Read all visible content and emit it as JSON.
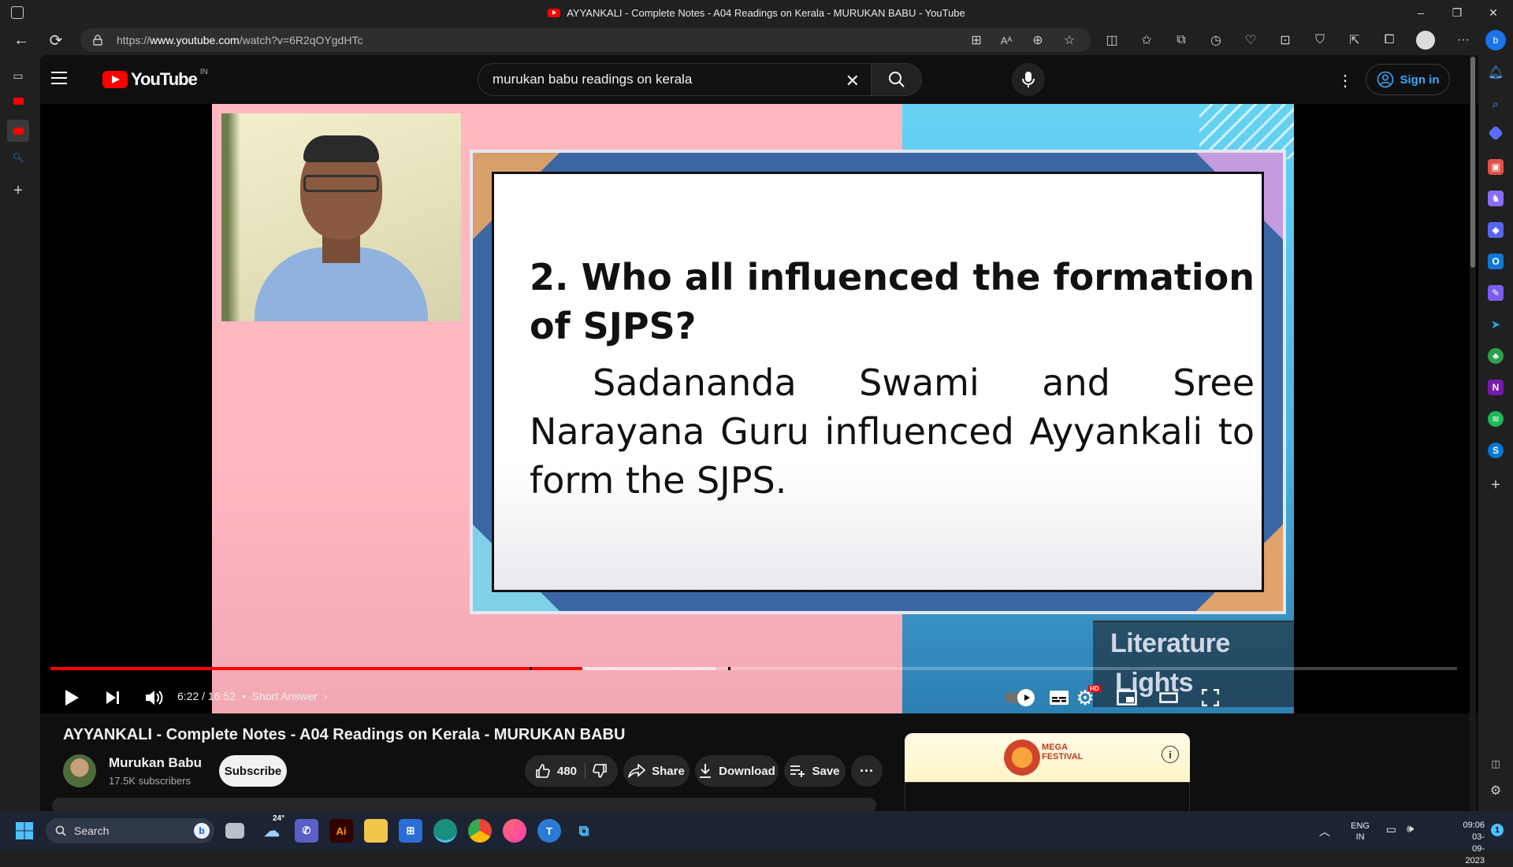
{
  "window": {
    "title": "AYYANKALI - Complete Notes - A04 Readings on Kerala - MURUKAN BABU - YouTube"
  },
  "address_bar": {
    "url_prefix": "https://",
    "url_host": "www.youtube.com",
    "url_path": "/watch?v=6R2qOYgdHTc"
  },
  "youtube": {
    "logo_text": "YouTube",
    "country_code": "IN",
    "search_value": "murukan babu readings on kerala",
    "sign_in_label": "Sign in"
  },
  "slide": {
    "question": "2. Who all influenced the formation of SJPS?",
    "answer": "Sadananda Swami and Sree Narayana Guru influenced Ayyankali to form the SJPS.",
    "watermark_line1": "Literature",
    "watermark_line2": "Lights"
  },
  "player": {
    "time": "6:22 / 16:52",
    "chapter_separator": "•",
    "chapter": "Short Answer",
    "progress_played": 0.378,
    "progress_buffered": 0.473,
    "hd_badge": "HD"
  },
  "video": {
    "title": "AYYANKALI - Complete Notes - A04 Readings on Kerala - MURUKAN BABU",
    "channel_name": "Murukan Babu",
    "subscribers": "17.5K subscribers",
    "subscribe_label": "Subscribe",
    "like_count": "480",
    "share_label": "Share",
    "download_label": "Download",
    "save_label": "Save"
  },
  "ad": {
    "line1": "MEGA",
    "line2": "FESTIVAL"
  },
  "taskbar": {
    "search_label": "Search",
    "weather_temp": "24°",
    "lang_line1": "ENG",
    "lang_line2": "IN",
    "time": "09:06",
    "date": "03-09-2023",
    "notification_count": "1"
  },
  "colors": {
    "youtube_red": "#ff0000",
    "link_blue": "#3ea6ff",
    "slide_pink": "#ffb7c0",
    "slide_blue": "#4bb4e2",
    "frame_blue": "#3b66a4"
  }
}
